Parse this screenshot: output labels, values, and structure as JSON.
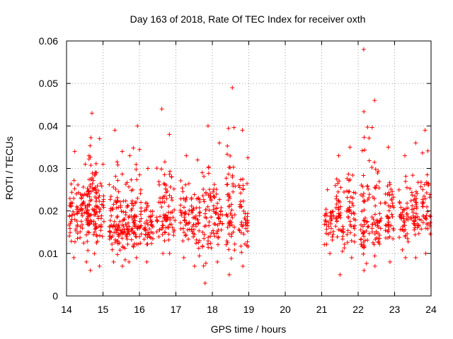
{
  "chart_data": {
    "type": "scatter",
    "title": "Day 163 of 2018, Rate Of TEC Index for receiver oxth",
    "xlabel": "GPS time / hours",
    "ylabel": "ROTI / TECUs",
    "xlim": [
      14,
      24
    ],
    "ylim": [
      0,
      0.06
    ],
    "xticks": [
      14,
      15,
      16,
      17,
      18,
      19,
      20,
      21,
      22,
      23,
      24
    ],
    "yticks": [
      0,
      0.01,
      0.02,
      0.03,
      0.04,
      0.05,
      0.06
    ],
    "xtick_labels": [
      "14",
      "15",
      "16",
      "17",
      "18",
      "19",
      "20",
      "21",
      "22",
      "23",
      "24"
    ],
    "ytick_labels": [
      "0",
      "0.01",
      "0.02",
      "0.03",
      "0.04",
      "0.05",
      "0.06"
    ],
    "grid": true,
    "marker": "+",
    "color": "#ff0000",
    "series": [
      {
        "name": "ROTI",
        "clusters": [
          {
            "t": 14.2,
            "center": 0.019,
            "min": 0.009,
            "max": 0.034,
            "n": 45
          },
          {
            "t": 14.5,
            "center": 0.02,
            "min": 0.008,
            "max": 0.031,
            "n": 50
          },
          {
            "t": 14.7,
            "center": 0.021,
            "min": 0.006,
            "max": 0.043,
            "n": 60
          },
          {
            "t": 14.9,
            "center": 0.02,
            "min": 0.007,
            "max": 0.037,
            "n": 50
          },
          {
            "t": 15.3,
            "center": 0.017,
            "min": 0.008,
            "max": 0.039,
            "n": 50
          },
          {
            "t": 15.5,
            "center": 0.017,
            "min": 0.007,
            "max": 0.034,
            "n": 50
          },
          {
            "t": 15.75,
            "center": 0.017,
            "min": 0.008,
            "max": 0.033,
            "n": 45
          },
          {
            "t": 15.95,
            "center": 0.018,
            "min": 0.009,
            "max": 0.04,
            "n": 45
          },
          {
            "t": 16.25,
            "center": 0.017,
            "min": 0.008,
            "max": 0.03,
            "n": 45
          },
          {
            "t": 16.6,
            "center": 0.019,
            "min": 0.01,
            "max": 0.044,
            "n": 45
          },
          {
            "t": 16.85,
            "center": 0.019,
            "min": 0.01,
            "max": 0.038,
            "n": 40
          },
          {
            "t": 17.25,
            "center": 0.018,
            "min": 0.009,
            "max": 0.033,
            "n": 40
          },
          {
            "t": 17.55,
            "center": 0.018,
            "min": 0.007,
            "max": 0.032,
            "n": 45
          },
          {
            "t": 17.85,
            "center": 0.019,
            "min": 0.003,
            "max": 0.04,
            "n": 45
          },
          {
            "t": 18.15,
            "center": 0.019,
            "min": 0.008,
            "max": 0.036,
            "n": 45
          },
          {
            "t": 18.5,
            "center": 0.019,
            "min": 0.005,
            "max": 0.049,
            "n": 55
          },
          {
            "t": 18.85,
            "center": 0.018,
            "min": 0.007,
            "max": 0.039,
            "n": 45
          },
          {
            "t": 21.2,
            "center": 0.018,
            "min": 0.01,
            "max": 0.025,
            "n": 35
          },
          {
            "t": 21.5,
            "center": 0.018,
            "min": 0.005,
            "max": 0.033,
            "n": 45
          },
          {
            "t": 21.8,
            "center": 0.019,
            "min": 0.009,
            "max": 0.035,
            "n": 45
          },
          {
            "t": 22.2,
            "center": 0.019,
            "min": 0.006,
            "max": 0.058,
            "n": 55
          },
          {
            "t": 22.5,
            "center": 0.019,
            "min": 0.007,
            "max": 0.046,
            "n": 50
          },
          {
            "t": 22.85,
            "center": 0.02,
            "min": 0.008,
            "max": 0.035,
            "n": 45
          },
          {
            "t": 23.25,
            "center": 0.019,
            "min": 0.009,
            "max": 0.033,
            "n": 45
          },
          {
            "t": 23.55,
            "center": 0.019,
            "min": 0.009,
            "max": 0.036,
            "n": 45
          },
          {
            "t": 23.85,
            "center": 0.019,
            "min": 0.01,
            "max": 0.039,
            "n": 45
          }
        ]
      }
    ]
  }
}
